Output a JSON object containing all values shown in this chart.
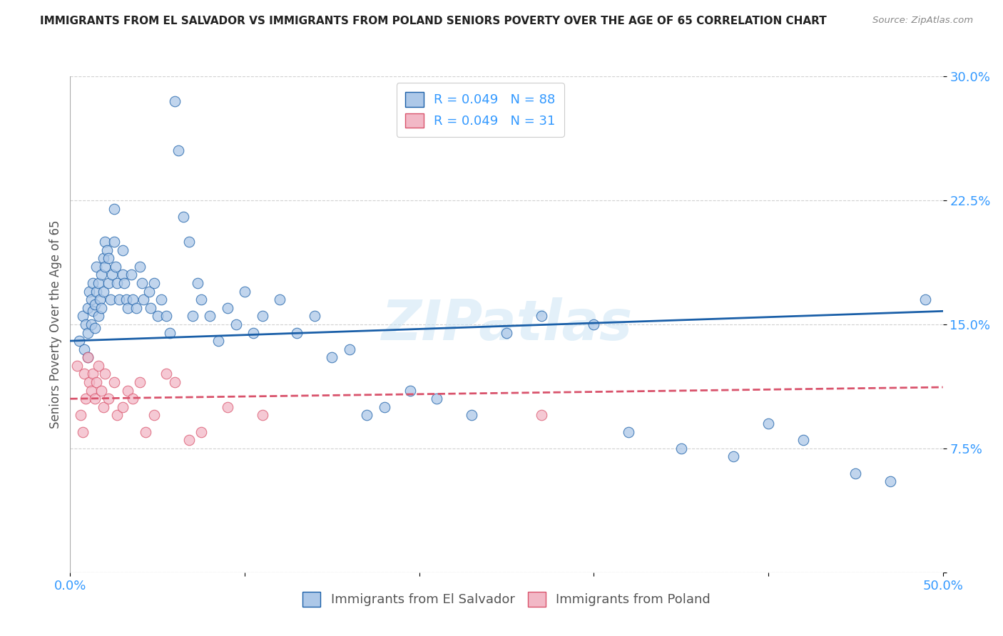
{
  "title": "IMMIGRANTS FROM EL SALVADOR VS IMMIGRANTS FROM POLAND SENIORS POVERTY OVER THE AGE OF 65 CORRELATION CHART",
  "source": "Source: ZipAtlas.com",
  "ylabel": "Seniors Poverty Over the Age of 65",
  "xlim": [
    0.0,
    0.5
  ],
  "ylim": [
    0.0,
    0.3
  ],
  "xticks": [
    0.0,
    0.1,
    0.2,
    0.3,
    0.4,
    0.5
  ],
  "xticklabels": [
    "0.0%",
    "",
    "",
    "",
    "",
    "50.0%"
  ],
  "yticks": [
    0.0,
    0.075,
    0.15,
    0.225,
    0.3
  ],
  "yticklabels": [
    "",
    "7.5%",
    "15.0%",
    "22.5%",
    "30.0%"
  ],
  "blue_R": "0.049",
  "blue_N": "88",
  "pink_R": "0.049",
  "pink_N": "31",
  "blue_color": "#adc8e8",
  "blue_line_color": "#1a5fa8",
  "pink_color": "#f2b8c6",
  "pink_line_color": "#d9536c",
  "blue_label": "Immigrants from El Salvador",
  "pink_label": "Immigrants from Poland",
  "watermark": "ZIPatlas",
  "blue_scatter_x": [
    0.005,
    0.007,
    0.008,
    0.009,
    0.01,
    0.01,
    0.01,
    0.011,
    0.012,
    0.012,
    0.013,
    0.013,
    0.014,
    0.014,
    0.015,
    0.015,
    0.016,
    0.016,
    0.017,
    0.018,
    0.018,
    0.019,
    0.019,
    0.02,
    0.02,
    0.021,
    0.022,
    0.022,
    0.023,
    0.024,
    0.025,
    0.025,
    0.026,
    0.027,
    0.028,
    0.03,
    0.03,
    0.031,
    0.032,
    0.033,
    0.035,
    0.036,
    0.038,
    0.04,
    0.041,
    0.042,
    0.045,
    0.046,
    0.048,
    0.05,
    0.052,
    0.055,
    0.057,
    0.06,
    0.062,
    0.065,
    0.068,
    0.07,
    0.073,
    0.075,
    0.08,
    0.085,
    0.09,
    0.095,
    0.1,
    0.105,
    0.11,
    0.12,
    0.13,
    0.14,
    0.15,
    0.16,
    0.17,
    0.18,
    0.195,
    0.21,
    0.23,
    0.25,
    0.27,
    0.3,
    0.32,
    0.35,
    0.38,
    0.4,
    0.42,
    0.45,
    0.47,
    0.49
  ],
  "blue_scatter_y": [
    0.14,
    0.155,
    0.135,
    0.15,
    0.16,
    0.145,
    0.13,
    0.17,
    0.165,
    0.15,
    0.175,
    0.158,
    0.162,
    0.148,
    0.185,
    0.17,
    0.155,
    0.175,
    0.165,
    0.18,
    0.16,
    0.19,
    0.17,
    0.2,
    0.185,
    0.195,
    0.175,
    0.19,
    0.165,
    0.18,
    0.22,
    0.2,
    0.185,
    0.175,
    0.165,
    0.195,
    0.18,
    0.175,
    0.165,
    0.16,
    0.18,
    0.165,
    0.16,
    0.185,
    0.175,
    0.165,
    0.17,
    0.16,
    0.175,
    0.155,
    0.165,
    0.155,
    0.145,
    0.285,
    0.255,
    0.215,
    0.2,
    0.155,
    0.175,
    0.165,
    0.155,
    0.14,
    0.16,
    0.15,
    0.17,
    0.145,
    0.155,
    0.165,
    0.145,
    0.155,
    0.13,
    0.135,
    0.095,
    0.1,
    0.11,
    0.105,
    0.095,
    0.145,
    0.155,
    0.15,
    0.085,
    0.075,
    0.07,
    0.09,
    0.08,
    0.06,
    0.055,
    0.165
  ],
  "pink_scatter_x": [
    0.004,
    0.006,
    0.007,
    0.008,
    0.009,
    0.01,
    0.011,
    0.012,
    0.013,
    0.014,
    0.015,
    0.016,
    0.018,
    0.019,
    0.02,
    0.022,
    0.025,
    0.027,
    0.03,
    0.033,
    0.036,
    0.04,
    0.043,
    0.048,
    0.055,
    0.06,
    0.068,
    0.075,
    0.09,
    0.11,
    0.27
  ],
  "pink_scatter_y": [
    0.125,
    0.095,
    0.085,
    0.12,
    0.105,
    0.13,
    0.115,
    0.11,
    0.12,
    0.105,
    0.115,
    0.125,
    0.11,
    0.1,
    0.12,
    0.105,
    0.115,
    0.095,
    0.1,
    0.11,
    0.105,
    0.115,
    0.085,
    0.095,
    0.12,
    0.115,
    0.08,
    0.085,
    0.1,
    0.095,
    0.095
  ],
  "blue_trend_x": [
    0.0,
    0.5
  ],
  "blue_trend_y": [
    0.14,
    0.158
  ],
  "pink_trend_x": [
    0.0,
    0.5
  ],
  "pink_trend_y": [
    0.105,
    0.112
  ]
}
